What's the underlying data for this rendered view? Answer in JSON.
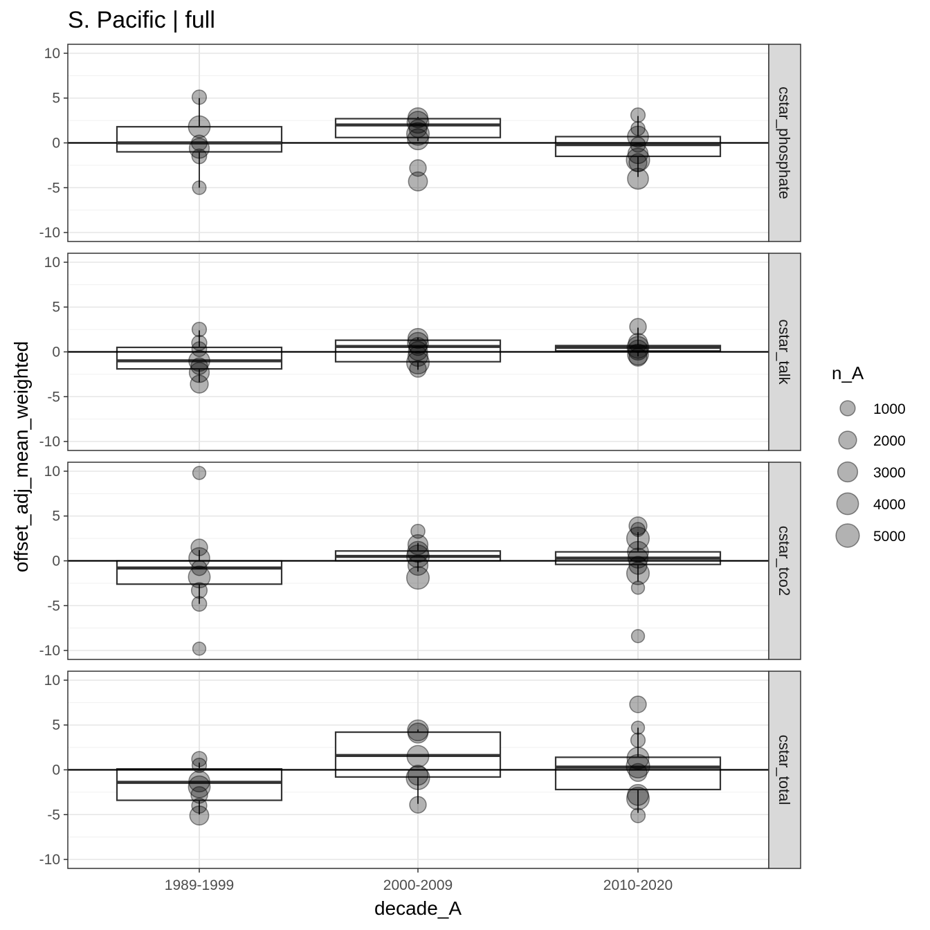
{
  "chart_data": {
    "type": "boxplot",
    "title": "S. Pacific | full",
    "xlabel": "decade_A",
    "ylabel": "offset_adj_mean_weighted",
    "categories": [
      "1989-1999",
      "2000-2009",
      "2010-2020"
    ],
    "ylim": [
      -11,
      11
    ],
    "yticks": [
      10,
      5,
      0,
      -5,
      -10
    ],
    "ytick_labels": [
      "10",
      "5",
      "0",
      "-5",
      "-10"
    ],
    "grid": true,
    "hline": 0,
    "legend": {
      "title": "n_A",
      "position": "right",
      "values": [
        1000,
        2000,
        3000,
        4000,
        5000
      ],
      "labels": [
        "1000",
        "2000",
        "3000",
        "4000",
        "5000"
      ]
    },
    "facets": [
      {
        "name": "cstar_phosphate",
        "boxes": [
          {
            "category": "1989-1999",
            "q1": -1.0,
            "median": 0.0,
            "q3": 1.8,
            "whisker_low": -5.0,
            "whisker_high": 5.0
          },
          {
            "category": "2000-2009",
            "q1": 0.6,
            "median": 2.0,
            "q3": 2.7,
            "whisker_low": 0.2,
            "whisker_high": 2.9
          },
          {
            "category": "2010-2020",
            "q1": -1.5,
            "median": -0.2,
            "q3": 0.7,
            "whisker_low": -3.8,
            "whisker_high": 3.0
          }
        ],
        "points": [
          {
            "category": "1989-1999",
            "y": 5.1,
            "n": 800
          },
          {
            "category": "1989-1999",
            "y": 1.8,
            "n": 4000
          },
          {
            "category": "1989-1999",
            "y": 0.0,
            "n": 1200
          },
          {
            "category": "1989-1999",
            "y": -0.6,
            "n": 3000
          },
          {
            "category": "1989-1999",
            "y": -1.5,
            "n": 900
          },
          {
            "category": "1989-1999",
            "y": -5.0,
            "n": 600
          },
          {
            "category": "2000-2009",
            "y": 2.8,
            "n": 3000
          },
          {
            "category": "2000-2009",
            "y": 2.3,
            "n": 4000
          },
          {
            "category": "2000-2009",
            "y": 1.6,
            "n": 2000
          },
          {
            "category": "2000-2009",
            "y": 1.0,
            "n": 4500
          },
          {
            "category": "2000-2009",
            "y": 0.4,
            "n": 3500
          },
          {
            "category": "2000-2009",
            "y": -2.8,
            "n": 1500
          },
          {
            "category": "2000-2009",
            "y": -4.3,
            "n": 2500
          },
          {
            "category": "2010-2020",
            "y": 3.1,
            "n": 800
          },
          {
            "category": "2010-2020",
            "y": 1.6,
            "n": 700
          },
          {
            "category": "2010-2020",
            "y": 0.7,
            "n": 3500
          },
          {
            "category": "2010-2020",
            "y": -0.2,
            "n": 1000
          },
          {
            "category": "2010-2020",
            "y": -1.2,
            "n": 3000
          },
          {
            "category": "2010-2020",
            "y": -1.9,
            "n": 5000
          },
          {
            "category": "2010-2020",
            "y": -2.2,
            "n": 2000
          },
          {
            "category": "2010-2020",
            "y": -4.0,
            "n": 3500
          }
        ]
      },
      {
        "name": "cstar_talk",
        "boxes": [
          {
            "category": "1989-1999",
            "q1": -1.9,
            "median": -1.0,
            "q3": 0.5,
            "whisker_low": -3.4,
            "whisker_high": 2.4
          },
          {
            "category": "2000-2009",
            "q1": -1.1,
            "median": 0.6,
            "q3": 1.3,
            "whisker_low": -2.0,
            "whisker_high": 1.6
          },
          {
            "category": "2010-2020",
            "q1": 0.1,
            "median": 0.5,
            "q3": 0.7,
            "whisker_low": -0.5,
            "whisker_high": 2.7
          }
        ],
        "points": [
          {
            "category": "1989-1999",
            "y": 2.5,
            "n": 800
          },
          {
            "category": "1989-1999",
            "y": 1.0,
            "n": 1000
          },
          {
            "category": "1989-1999",
            "y": 0.3,
            "n": 900
          },
          {
            "category": "1989-1999",
            "y": -1.0,
            "n": 3500
          },
          {
            "category": "1989-1999",
            "y": -1.6,
            "n": 1500
          },
          {
            "category": "1989-1999",
            "y": -2.3,
            "n": 3000
          },
          {
            "category": "1989-1999",
            "y": -3.6,
            "n": 2000
          },
          {
            "category": "2000-2009",
            "y": 1.5,
            "n": 3000
          },
          {
            "category": "2000-2009",
            "y": 1.0,
            "n": 3500
          },
          {
            "category": "2000-2009",
            "y": 0.6,
            "n": 2000
          },
          {
            "category": "2000-2009",
            "y": 0.1,
            "n": 2500
          },
          {
            "category": "2000-2009",
            "y": -0.5,
            "n": 3000
          },
          {
            "category": "2000-2009",
            "y": -1.2,
            "n": 4500
          },
          {
            "category": "2000-2009",
            "y": -1.9,
            "n": 1500
          },
          {
            "category": "2010-2020",
            "y": 2.8,
            "n": 1500
          },
          {
            "category": "2010-2020",
            "y": 1.0,
            "n": 2500
          },
          {
            "category": "2010-2020",
            "y": 0.5,
            "n": 4000
          },
          {
            "category": "2010-2020",
            "y": 0.2,
            "n": 3000
          },
          {
            "category": "2010-2020",
            "y": -0.3,
            "n": 3500
          },
          {
            "category": "2010-2020",
            "y": -0.6,
            "n": 2000
          }
        ]
      },
      {
        "name": "cstar_tco2",
        "boxes": [
          {
            "category": "1989-1999",
            "q1": -2.6,
            "median": -0.8,
            "q3": 0.0,
            "whisker_low": -4.8,
            "whisker_high": 1.2
          },
          {
            "category": "2000-2009",
            "q1": 0.0,
            "median": 0.5,
            "q3": 1.1,
            "whisker_low": -1.2,
            "whisker_high": 2.0
          },
          {
            "category": "2010-2020",
            "q1": -0.4,
            "median": 0.3,
            "q3": 1.0,
            "whisker_low": -2.3,
            "whisker_high": 3.2
          }
        ],
        "points": [
          {
            "category": "1989-1999",
            "y": 9.8,
            "n": 500
          },
          {
            "category": "1989-1999",
            "y": 1.5,
            "n": 1500
          },
          {
            "category": "1989-1999",
            "y": 0.3,
            "n": 3500
          },
          {
            "category": "1989-1999",
            "y": -0.8,
            "n": 1000
          },
          {
            "category": "1989-1999",
            "y": -1.8,
            "n": 4000
          },
          {
            "category": "1989-1999",
            "y": -3.3,
            "n": 1200
          },
          {
            "category": "1989-1999",
            "y": -4.8,
            "n": 900
          },
          {
            "category": "1989-1999",
            "y": -9.8,
            "n": 500
          },
          {
            "category": "2000-2009",
            "y": 3.3,
            "n": 700
          },
          {
            "category": "2000-2009",
            "y": 1.8,
            "n": 3000
          },
          {
            "category": "2000-2009",
            "y": 1.0,
            "n": 3500
          },
          {
            "category": "2000-2009",
            "y": 0.5,
            "n": 4500
          },
          {
            "category": "2000-2009",
            "y": -0.5,
            "n": 3000
          },
          {
            "category": "2000-2009",
            "y": -1.9,
            "n": 4500
          },
          {
            "category": "2010-2020",
            "y": 3.9,
            "n": 2000
          },
          {
            "category": "2010-2020",
            "y": 3.5,
            "n": 700
          },
          {
            "category": "2010-2020",
            "y": 2.5,
            "n": 4500
          },
          {
            "category": "2010-2020",
            "y": 1.0,
            "n": 3500
          },
          {
            "category": "2010-2020",
            "y": 0.3,
            "n": 3000
          },
          {
            "category": "2010-2020",
            "y": -0.5,
            "n": 2000
          },
          {
            "category": "2010-2020",
            "y": -1.4,
            "n": 4500
          },
          {
            "category": "2010-2020",
            "y": -3.0,
            "n": 500
          },
          {
            "category": "2010-2020",
            "y": -8.4,
            "n": 500
          }
        ]
      },
      {
        "name": "cstar_total",
        "boxes": [
          {
            "category": "1989-1999",
            "q1": -3.4,
            "median": -1.4,
            "q3": 0.1,
            "whisker_low": -5.0,
            "whisker_high": 0.8
          },
          {
            "category": "2000-2009",
            "q1": -0.8,
            "median": 1.6,
            "q3": 4.2,
            "whisker_low": -3.8,
            "whisker_high": 4.5
          },
          {
            "category": "2010-2020",
            "q1": -2.2,
            "median": 0.3,
            "q3": 1.4,
            "whisker_low": -4.8,
            "whisker_high": 4.7
          }
        ],
        "points": [
          {
            "category": "1989-1999",
            "y": 1.2,
            "n": 1000
          },
          {
            "category": "1989-1999",
            "y": 0.5,
            "n": 800
          },
          {
            "category": "1989-1999",
            "y": -1.3,
            "n": 3500
          },
          {
            "category": "1989-1999",
            "y": -1.9,
            "n": 4000
          },
          {
            "category": "1989-1999",
            "y": -2.8,
            "n": 1500
          },
          {
            "category": "1989-1999",
            "y": -4.0,
            "n": 1000
          },
          {
            "category": "1989-1999",
            "y": -5.1,
            "n": 2500
          },
          {
            "category": "2000-2009",
            "y": 4.4,
            "n": 3500
          },
          {
            "category": "2000-2009",
            "y": 4.1,
            "n": 3000
          },
          {
            "category": "2000-2009",
            "y": 1.5,
            "n": 4000
          },
          {
            "category": "2000-2009",
            "y": -0.6,
            "n": 3000
          },
          {
            "category": "2000-2009",
            "y": -0.9,
            "n": 5000
          },
          {
            "category": "2000-2009",
            "y": -3.9,
            "n": 1500
          },
          {
            "category": "2010-2020",
            "y": 7.3,
            "n": 1500
          },
          {
            "category": "2010-2020",
            "y": 4.7,
            "n": 500
          },
          {
            "category": "2010-2020",
            "y": 3.3,
            "n": 800
          },
          {
            "category": "2010-2020",
            "y": 1.3,
            "n": 4000
          },
          {
            "category": "2010-2020",
            "y": 0.4,
            "n": 5000
          },
          {
            "category": "2010-2020",
            "y": -0.3,
            "n": 2000
          },
          {
            "category": "2010-2020",
            "y": -2.8,
            "n": 3500
          },
          {
            "category": "2010-2020",
            "y": -3.2,
            "n": 4500
          },
          {
            "category": "2010-2020",
            "y": -5.1,
            "n": 800
          }
        ]
      }
    ]
  }
}
